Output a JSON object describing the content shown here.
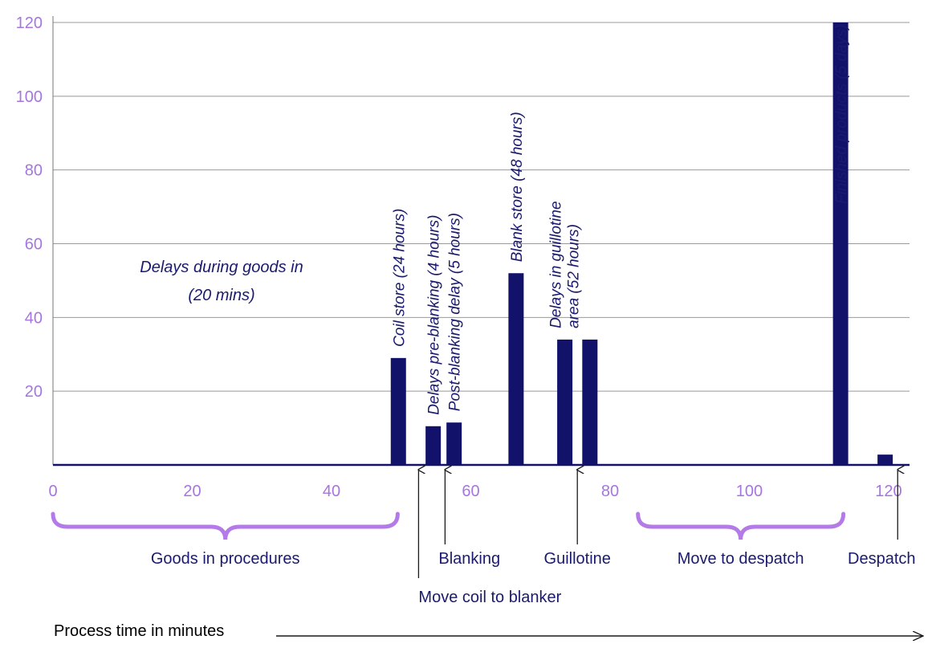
{
  "chart_data": {
    "type": "bar",
    "title": "",
    "xlabel": "Process time in minutes",
    "ylabel": "",
    "xlim": [
      0,
      123
    ],
    "ylim": [
      0,
      120
    ],
    "x_ticks": [
      "0",
      "20",
      "40",
      "60",
      "80",
      "100",
      "120"
    ],
    "y_ticks": [
      "20",
      "40",
      "60",
      "80",
      "100",
      "120"
    ],
    "grid": true,
    "colors": {
      "bar": "#12126b",
      "tick": "#a675e0",
      "brace": "#b37ae8",
      "text": "#1a1a6e",
      "grid": "#999999"
    },
    "bars": [
      {
        "x": 49.6,
        "value": 29,
        "label": [
          "Coil store (24 hours)"
        ]
      },
      {
        "x": 54.6,
        "value": 10.5,
        "label": [
          "Delays pre-blanking (4 hours)"
        ]
      },
      {
        "x": 57.6,
        "value": 11.5,
        "label": [
          "Post-blanking delay (5 hours)"
        ]
      },
      {
        "x": 66.5,
        "value": 52,
        "label": [
          "Blank store (48 hours)"
        ]
      },
      {
        "x": 73.5,
        "value": 34,
        "label": [
          "Delays in guillotine",
          "area (52 hours)"
        ]
      },
      {
        "x": 77.1,
        "value": 34,
        "label": []
      },
      {
        "x": 113.1,
        "value": 120,
        "label": [
          "Finished products (5 days)"
        ]
      },
      {
        "x": 119.5,
        "value": 2.8,
        "label": []
      }
    ],
    "text_annotation": [
      "Delays during goods in",
      "(20 mins)"
    ],
    "phases": [
      {
        "label": "Goods in procedures",
        "from": 0,
        "to": 49.5
      },
      {
        "label": "Move to despatch",
        "from": 84,
        "to": 113.5
      }
    ],
    "markers": [
      {
        "label": "Move coil to blanker",
        "x": 52.5
      },
      {
        "label": "Blanking",
        "x": 56.3
      },
      {
        "label": "Guillotine",
        "x": 75.3
      },
      {
        "label": "Despatch",
        "x": 121.3
      }
    ]
  }
}
